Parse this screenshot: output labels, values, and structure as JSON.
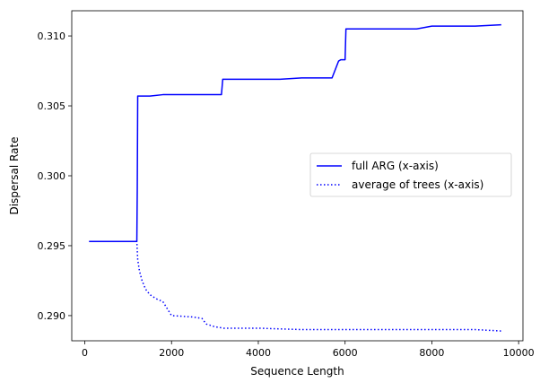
{
  "chart_data": {
    "type": "line",
    "title": "",
    "xlabel": "Sequence Length",
    "ylabel": "Dispersal Rate",
    "xlim": [
      -300,
      10100
    ],
    "ylim": [
      0.2882,
      0.3118
    ],
    "xticks": [
      0,
      2000,
      4000,
      6000,
      8000,
      10000
    ],
    "xtick_labels": [
      "0",
      "2000",
      "4000",
      "6000",
      "8000",
      "10000"
    ],
    "yticks": [
      0.29,
      0.295,
      0.3,
      0.305,
      0.31
    ],
    "ytick_labels": [
      "0.290",
      "0.295",
      "0.300",
      "0.305",
      "0.310"
    ],
    "grid": false,
    "legend_position": "center-right",
    "series": [
      {
        "name": "full ARG (x-axis)",
        "color": "#0000ff",
        "style": "solid",
        "x": [
          100,
          1200,
          1210,
          1220,
          1500,
          1800,
          2000,
          3000,
          3150,
          3180,
          3300,
          4500,
          5000,
          5700,
          5850,
          5900,
          6000,
          6020,
          6100,
          7000,
          7650,
          8000,
          9000,
          9600
        ],
        "y": [
          0.2953,
          0.2953,
          0.299,
          0.3057,
          0.3057,
          0.3058,
          0.3058,
          0.3058,
          0.3058,
          0.3069,
          0.3069,
          0.3069,
          0.307,
          0.307,
          0.3082,
          0.3083,
          0.3083,
          0.3105,
          0.3105,
          0.3105,
          0.3105,
          0.3107,
          0.3107,
          0.3108
        ]
      },
      {
        "name": "average of trees (x-axis)",
        "color": "#0000ff",
        "style": "dotted",
        "x": [
          100,
          1200,
          1220,
          1260,
          1320,
          1400,
          1500,
          1650,
          1800,
          1900,
          2000,
          2500,
          2700,
          2800,
          3000,
          3200,
          4000,
          5000,
          6000,
          7000,
          8000,
          9000,
          9600
        ],
        "y": [
          0.2953,
          0.2953,
          0.294,
          0.2932,
          0.2925,
          0.2919,
          0.2915,
          0.2912,
          0.291,
          0.2905,
          0.29,
          0.2899,
          0.2898,
          0.2894,
          0.2892,
          0.2891,
          0.2891,
          0.289,
          0.289,
          0.289,
          0.289,
          0.289,
          0.2889
        ]
      }
    ]
  }
}
